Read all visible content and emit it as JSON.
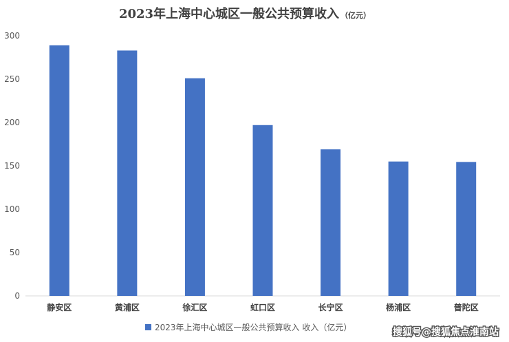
{
  "chart_data": {
    "type": "bar",
    "title": "2023年上海中心城区一般公共预算收入",
    "title_unit": "（亿元）",
    "categories": [
      "静安区",
      "黄浦区",
      "徐汇区",
      "虹口区",
      "长宁区",
      "杨浦区",
      "普陀区"
    ],
    "series": [
      {
        "name": "2023年上海中心城区一般公共预算收入 收入（亿元）",
        "values": [
          289,
          283,
          251,
          197,
          169,
          155,
          154.5
        ]
      }
    ],
    "ylim": [
      0,
      300
    ],
    "yticks": [
      0,
      50,
      100,
      150,
      200,
      250,
      300
    ],
    "grid": false,
    "legend_position": "bottom",
    "bar_color": "#4472C4"
  },
  "watermark": "搜狐号@搜狐焦点淮南站"
}
